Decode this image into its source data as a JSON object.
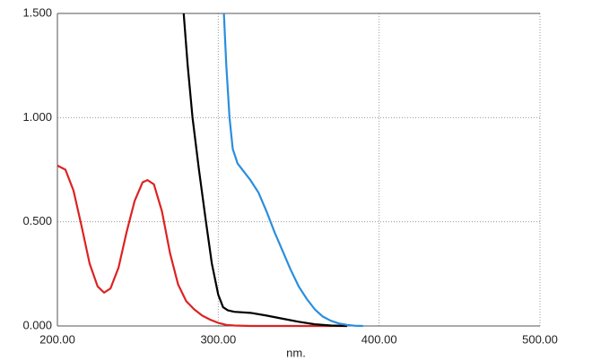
{
  "chart_data": {
    "type": "line",
    "x_label": "nm.",
    "xlim": [
      200,
      500
    ],
    "ylim": [
      0,
      1.5
    ],
    "xticks": [
      {
        "value": 200,
        "label": "200.00"
      },
      {
        "value": 300,
        "label": "300.00"
      },
      {
        "value": 400,
        "label": "400.00"
      },
      {
        "value": 500,
        "label": "500.00"
      }
    ],
    "yticks": [
      {
        "value": 0,
        "label": "0.000"
      },
      {
        "value": 0.5,
        "label": "0.500"
      },
      {
        "value": 1,
        "label": "1.000"
      },
      {
        "value": 1.5,
        "label": "1.500"
      }
    ],
    "grid": true,
    "series": [
      {
        "color": "#dd2222",
        "x": [
          200,
          205,
          210,
          215,
          220,
          225,
          229,
          233,
          238,
          243,
          248,
          253,
          256,
          260,
          265,
          270,
          275,
          280,
          285,
          290,
          295,
          300,
          305,
          310,
          320,
          350,
          380
        ],
        "values": [
          0.77,
          0.75,
          0.65,
          0.48,
          0.3,
          0.19,
          0.16,
          0.18,
          0.28,
          0.45,
          0.6,
          0.69,
          0.7,
          0.68,
          0.55,
          0.35,
          0.2,
          0.12,
          0.08,
          0.05,
          0.03,
          0.015,
          0.005,
          0.002,
          0,
          0,
          0
        ]
      },
      {
        "color": "#000000",
        "x": [
          278.5,
          281,
          284,
          288,
          292,
          296,
          300,
          303,
          306,
          310,
          320,
          330,
          340,
          350,
          360,
          370,
          380
        ],
        "values": [
          1.5,
          1.25,
          1.0,
          0.75,
          0.52,
          0.3,
          0.15,
          0.09,
          0.075,
          0.068,
          0.063,
          0.05,
          0.035,
          0.02,
          0.008,
          0.002,
          0
        ]
      },
      {
        "color": "#2a8ede",
        "x": [
          303.5,
          305,
          307,
          309,
          312,
          316,
          320,
          325,
          330,
          335,
          340,
          345,
          350,
          355,
          360,
          365,
          370,
          375,
          380,
          385,
          390
        ],
        "values": [
          1.5,
          1.25,
          1.0,
          0.85,
          0.78,
          0.74,
          0.7,
          0.64,
          0.55,
          0.45,
          0.36,
          0.27,
          0.19,
          0.13,
          0.08,
          0.045,
          0.025,
          0.012,
          0.005,
          0.001,
          0
        ]
      }
    ]
  }
}
